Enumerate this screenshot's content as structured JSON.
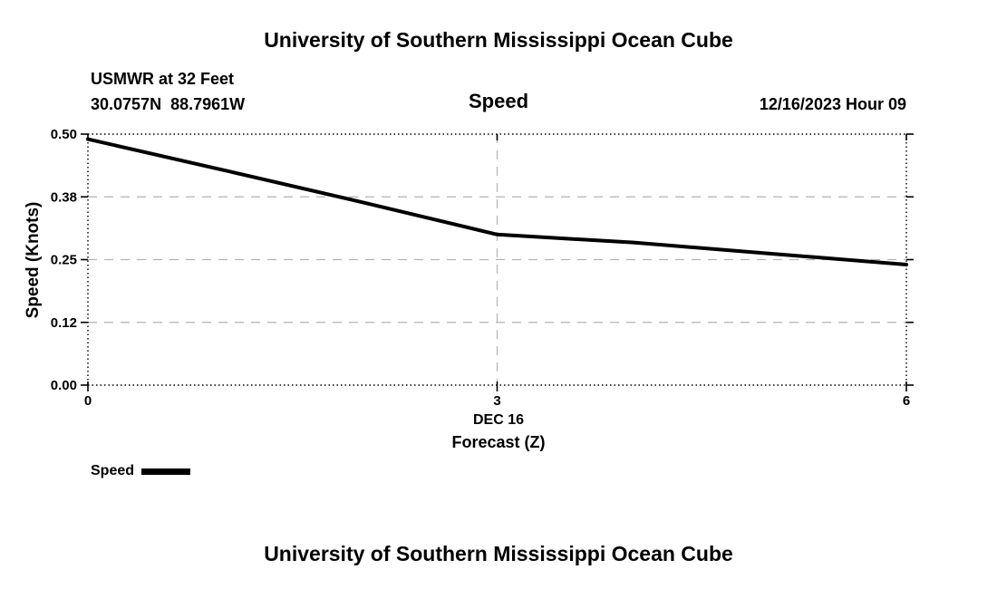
{
  "page": {
    "top_title": "University of Southern Mississippi Ocean Cube",
    "bottom_title": "University of Southern Mississippi Ocean Cube"
  },
  "header": {
    "station": "USMWR at 32 Feet",
    "coordinates": "30.0757N  88.7961W",
    "panel_title": "Speed",
    "timestamp": "12/16/2023 Hour 09"
  },
  "legend": {
    "label": "Speed",
    "swatch_color": "#000000"
  },
  "chart_data": {
    "type": "line",
    "title": "Speed",
    "x": [
      0,
      1,
      2,
      3,
      4,
      5,
      6
    ],
    "series": [
      {
        "name": "Speed",
        "color": "#000000",
        "line_width": 4,
        "values": [
          0.49,
          0.428,
          0.365,
          0.3,
          0.284,
          0.262,
          0.24
        ]
      }
    ],
    "xlim": [
      0,
      6
    ],
    "ylim": [
      0.0,
      0.5
    ],
    "xticks": [
      0,
      3,
      6
    ],
    "xtick_labels": [
      "0",
      "3",
      "6"
    ],
    "yticks": [
      0.0,
      0.125,
      0.25,
      0.375,
      0.5
    ],
    "ytick_labels": [
      "0.00",
      "0.12",
      "0.25",
      "0.38",
      "0.50"
    ],
    "x_date_label": "DEC 16",
    "xlabel": "Forecast (Z)",
    "ylabel": "Speed (Knots)",
    "grid": true,
    "grid_color": "#b3b3b3",
    "frame_style": "dotted",
    "legend_position": "bottom-left"
  }
}
